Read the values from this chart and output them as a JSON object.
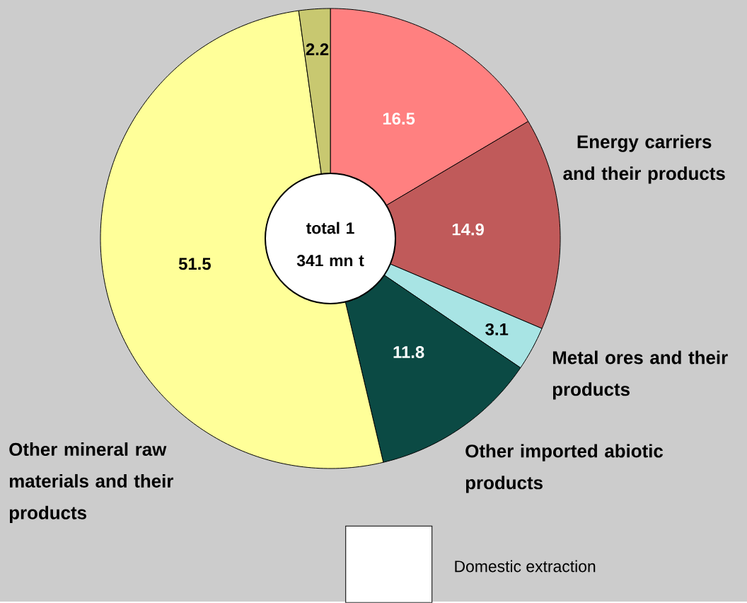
{
  "chart_data": {
    "type": "donut",
    "categories": [
      null,
      "Energy carriers and their products",
      "Metal ores and their products",
      "Other imported abiotic products",
      "Other mineral raw materials and their products",
      null
    ],
    "values": [
      16.5,
      14.9,
      3.1,
      11.8,
      51.5,
      2.2
    ],
    "colors": [
      "#ff8080",
      "#c05a5a",
      "#a8e4e4",
      "#0b4a44",
      "#ffff99",
      "#c8c870"
    ],
    "data_labels": true,
    "annotations": [
      "total 1 341 mn t",
      "Domestic extraction"
    ]
  }
}
